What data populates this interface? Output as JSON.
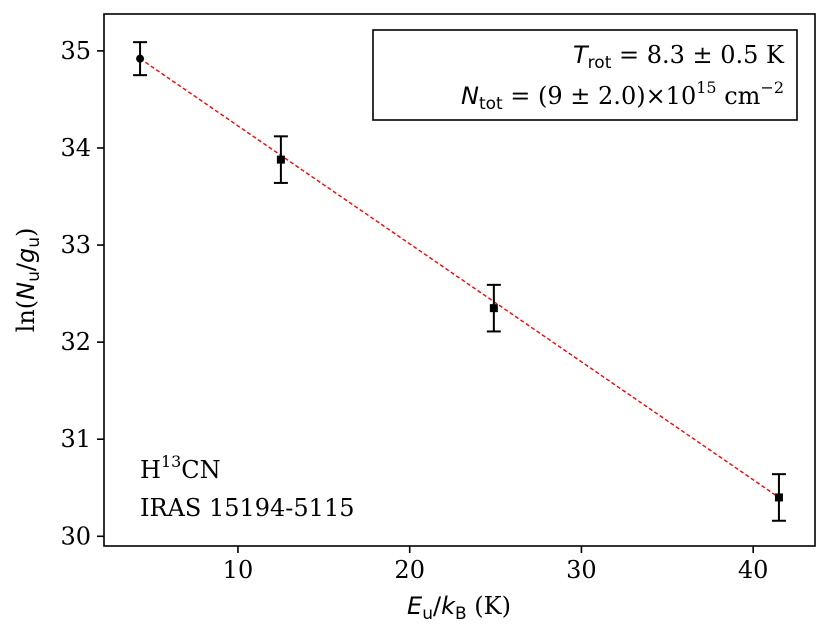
{
  "chart_data": {
    "type": "scatter",
    "xlabel": "E_u/k_B (K)",
    "ylabel": "ln(N_u/g_u)",
    "xlim": [
      2.2,
      43.6
    ],
    "ylim": [
      29.9,
      35.38
    ],
    "xticks": [
      10,
      20,
      30,
      40
    ],
    "yticks": [
      30,
      31,
      32,
      33,
      34,
      35
    ],
    "xtick_labels": [
      "10",
      "20",
      "30",
      "40"
    ],
    "ytick_labels": [
      "30",
      "31",
      "32",
      "33",
      "34",
      "35"
    ],
    "points": [
      {
        "x": 4.3,
        "y": 34.92,
        "yerr": 0.17,
        "marker": "circle"
      },
      {
        "x": 12.5,
        "y": 33.88,
        "yerr": 0.24,
        "marker": "square"
      },
      {
        "x": 24.9,
        "y": 32.35,
        "yerr": 0.24,
        "marker": "square"
      },
      {
        "x": 41.5,
        "y": 30.4,
        "yerr": 0.24,
        "marker": "square"
      }
    ],
    "fit_line": {
      "x": [
        4.3,
        41.5
      ],
      "y": [
        34.92,
        30.4
      ],
      "color": "#ff0000",
      "style": "dashed"
    },
    "grid": false,
    "legend_box": {
      "placement": "top-right",
      "line1": {
        "var": "T",
        "sub": "rot",
        "rest": " = 8.3 ± 0.5 K"
      },
      "line2": {
        "var": "N",
        "sub": "tot",
        "rest": " = (9 ± 2.0)×10",
        "exp": "15",
        "unit": " cm",
        "unit_exp": "−2"
      }
    },
    "annotation": {
      "placement": "bottom-left",
      "line1_a": "H",
      "line1_sup": "13",
      "line1_b": "CN",
      "line2": "IRAS 15194-5115"
    },
    "xlabel_parts": {
      "a": "E",
      "a_sub": "u",
      "b": "/",
      "c": "k",
      "c_sub": "B",
      "d": " (K)"
    },
    "ylabel_parts": {
      "pre": "ln(",
      "a": "N",
      "a_sub": "u",
      "b": "/",
      "c": "g",
      "c_sub": "u",
      "post": ")"
    },
    "colors": {
      "markers": "#000000",
      "fit": "#ff0000",
      "axes": "#000000"
    }
  }
}
